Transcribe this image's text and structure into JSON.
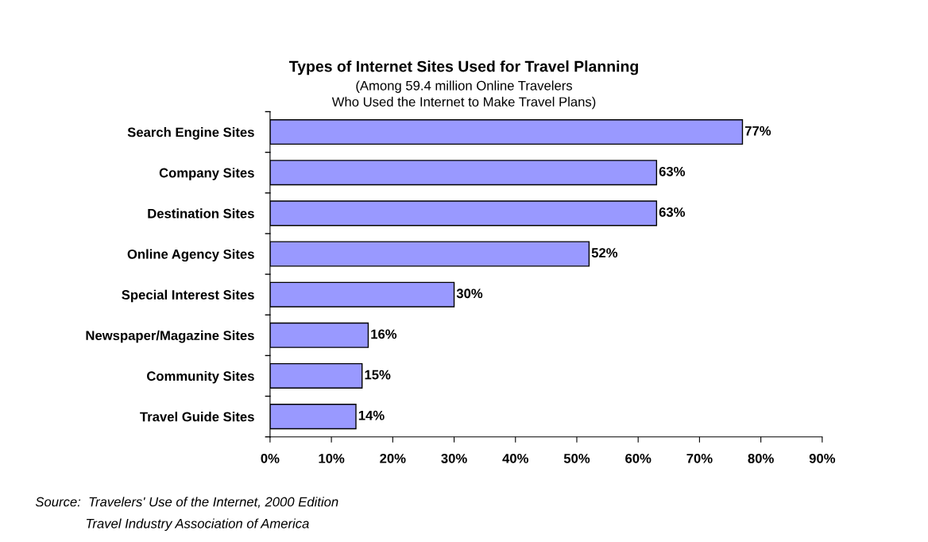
{
  "chart_data": {
    "type": "bar",
    "orientation": "horizontal",
    "title": "Types of Internet Sites Used for Travel Planning",
    "subtitle": "(Among 59.4 million Online Travelers\nWho Used the Internet to Make Travel Plans)",
    "categories": [
      "Search Engine Sites",
      "Company Sites",
      "Destination Sites",
      "Online Agency Sites",
      "Special Interest Sites",
      "Newspaper/Magazine Sites",
      "Community Sites",
      "Travel Guide Sites"
    ],
    "values": [
      77,
      63,
      63,
      52,
      30,
      16,
      15,
      14
    ],
    "value_labels": [
      "77%",
      "63%",
      "63%",
      "52%",
      "30%",
      "16%",
      "15%",
      "14%"
    ],
    "color": "#9999ff",
    "xlim": [
      0,
      90
    ],
    "xticks": [
      {
        "value": 0,
        "label": "0%"
      },
      {
        "value": 10,
        "label": "10%"
      },
      {
        "value": 20,
        "label": "20%"
      },
      {
        "value": 30,
        "label": "30%"
      },
      {
        "value": 40,
        "label": "40%"
      },
      {
        "value": 50,
        "label": "50%"
      },
      {
        "value": 60,
        "label": "60%"
      },
      {
        "value": 70,
        "label": "70%"
      },
      {
        "value": 80,
        "label": "80%"
      },
      {
        "value": 90,
        "label": "90%"
      }
    ],
    "grid": false,
    "legend": false,
    "annotations": [
      "Source:  Travelers' Use of the Internet, 2000 Edition",
      "Travel Industry Association of America"
    ]
  }
}
